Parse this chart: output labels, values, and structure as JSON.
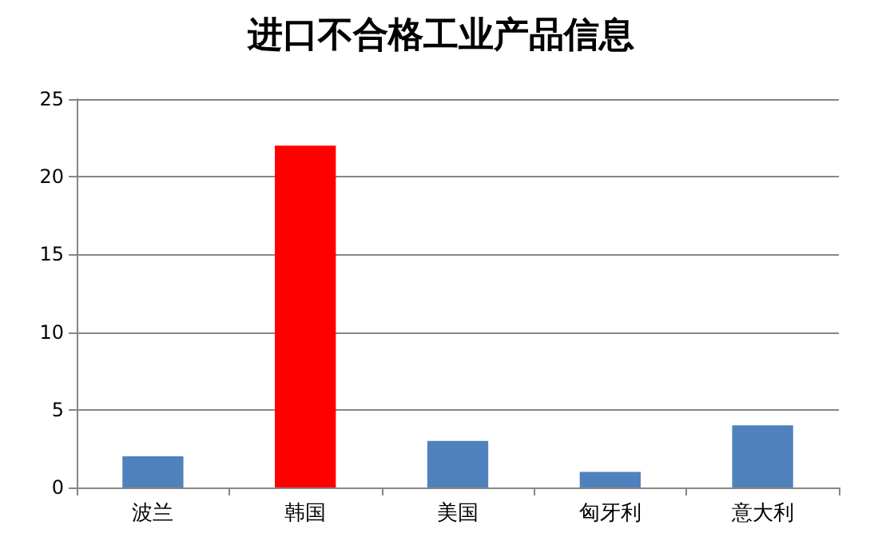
{
  "chart_data": {
    "type": "bar",
    "title": "进口不合格工业产品信息",
    "categories": [
      "波兰",
      "韩国",
      "美国",
      "匈牙利",
      "意大利"
    ],
    "values": [
      2,
      22,
      3,
      1,
      4
    ],
    "colors": [
      "#4f81bd",
      "#ff0000",
      "#4f81bd",
      "#4f81bd",
      "#4f81bd"
    ],
    "ylim": [
      0,
      25
    ],
    "yticks": [
      0,
      5,
      10,
      15,
      20,
      25
    ],
    "grid": "y"
  }
}
